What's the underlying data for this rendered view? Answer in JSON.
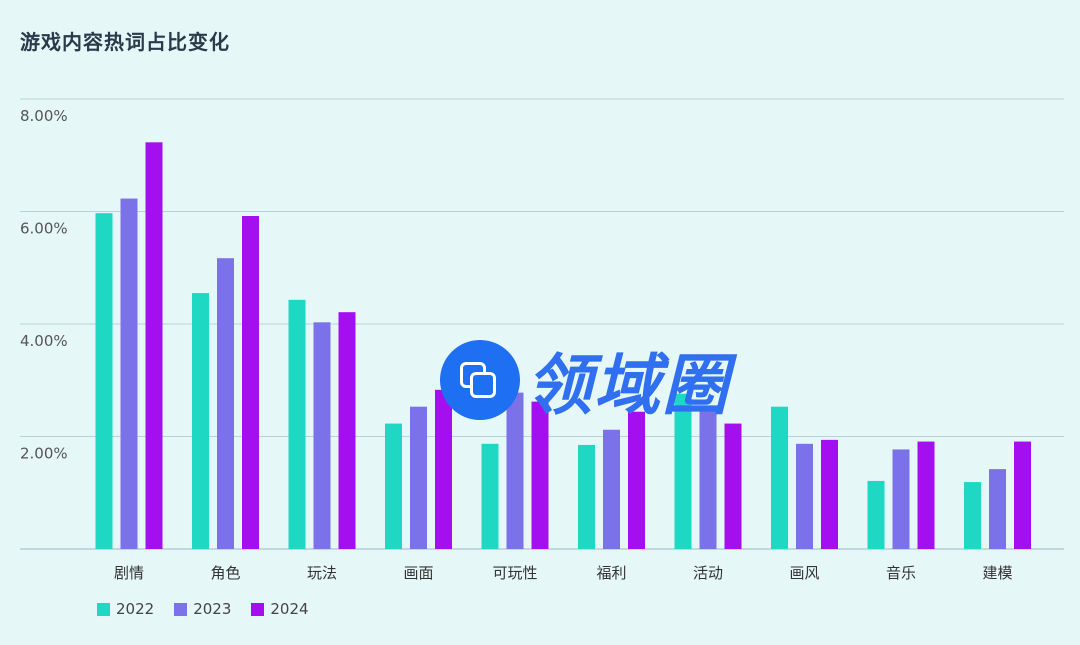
{
  "title": "游戏内容热词占比变化",
  "watermark": {
    "text": "领域圈"
  },
  "chart_data": {
    "type": "bar",
    "title": "游戏内容热词占比变化",
    "xlabel": "",
    "ylabel": "",
    "ylim": [
      0,
      0.08
    ],
    "yticks": [
      {
        "value": 0.02,
        "label": "2.00%"
      },
      {
        "value": 0.04,
        "label": "4.00%"
      },
      {
        "value": 0.06,
        "label": "6.00%"
      },
      {
        "value": 0.08,
        "label": "8.00%"
      }
    ],
    "grid": true,
    "legend_position": "bottom-left",
    "categories": [
      "剧情",
      "角色",
      "玩法",
      "画面",
      "可玩性",
      "福利",
      "活动",
      "画风",
      "音乐",
      "建模"
    ],
    "series": [
      {
        "name": "2022",
        "color": "#1fd8c4",
        "values": [
          0.0597,
          0.0455,
          0.0443,
          0.0223,
          0.0187,
          0.0185,
          0.0276,
          0.0253,
          0.0121,
          0.0119
        ]
      },
      {
        "name": "2023",
        "color": "#7b72ea",
        "values": [
          0.0623,
          0.0517,
          0.0403,
          0.0253,
          0.0278,
          0.0212,
          0.0255,
          0.0187,
          0.0177,
          0.0142
        ]
      },
      {
        "name": "2024",
        "color": "#a40ff0",
        "values": [
          0.0723,
          0.0592,
          0.0421,
          0.0283,
          0.0262,
          0.0244,
          0.0223,
          0.0194,
          0.0191,
          0.0191
        ]
      }
    ]
  }
}
